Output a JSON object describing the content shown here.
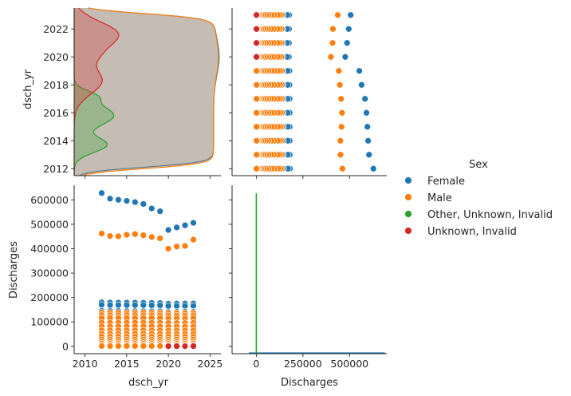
{
  "chart_data": {
    "type": "scatter",
    "title": "",
    "variables": [
      "dsch_yr",
      "Discharges"
    ],
    "legend": {
      "title": "Sex",
      "placement": "right",
      "entries": [
        {
          "label": "Female",
          "color": "#1f77b4"
        },
        {
          "label": "Male",
          "color": "#ff7f0e"
        },
        {
          "label": "Other, Unknown, Invalid",
          "color": "#2ca02c"
        },
        {
          "label": "Unknown, Invalid",
          "color": "#d62728"
        }
      ]
    },
    "axes": {
      "dsch_yr": {
        "label": "dsch_yr",
        "range": [
          2008.7,
          2026.3
        ],
        "ticks": [
          2010,
          2015,
          2020,
          2025
        ],
        "diag_range": [
          2011.5,
          2023.5
        ],
        "diag_ticks": [
          2012,
          2014,
          2016,
          2018,
          2020,
          2022
        ]
      },
      "Discharges": {
        "label": "Discharges",
        "range": [
          -30000,
          660000
        ],
        "ticks": [
          0,
          100000,
          200000,
          300000,
          400000,
          500000,
          600000
        ],
        "x_range": [
          -130000,
          700000
        ],
        "x_ticks": [
          0,
          250000,
          500000
        ]
      }
    },
    "years": [
      2012,
      2013,
      2014,
      2015,
      2016,
      2017,
      2018,
      2019,
      2020,
      2021,
      2022,
      2023
    ],
    "series": [
      {
        "name": "Female",
        "totals": [
          628000,
          605000,
          600000,
          596000,
          591000,
          583000,
          565000,
          553000,
          477000,
          487000,
          496000,
          506000
        ],
        "groups": [
          180000,
          170000,
          145000,
          125000,
          108000,
          90000,
          72000,
          58000,
          45000,
          33000,
          22000,
          14000,
          8000
        ]
      },
      {
        "name": "Male",
        "totals": [
          462000,
          452000,
          451000,
          457000,
          460000,
          455000,
          448000,
          443000,
          400000,
          409000,
          411000,
          437000
        ],
        "groups": [
          138000,
          128000,
          116000,
          97000,
          82000,
          66000,
          52000,
          40000,
          28000,
          18000,
          11000,
          5000,
          1500
        ]
      },
      {
        "name": "Other, Unknown, Invalid",
        "years": [
          2020,
          2021,
          2022,
          2023
        ],
        "values": [
          200,
          300,
          300,
          400
        ]
      },
      {
        "name": "Unknown, Invalid",
        "years": [
          2020,
          2021,
          2022,
          2023
        ],
        "values": [
          800,
          1000,
          900,
          1100
        ]
      }
    ],
    "kde_dsch_yr": [
      {
        "name": "Female",
        "range": [
          2012,
          2023
        ]
      },
      {
        "name": "Male",
        "range": [
          2012,
          2023
        ]
      },
      {
        "name": "Other, Unknown, Invalid",
        "range": [
          2012,
          2019
        ]
      },
      {
        "name": "Unknown, Invalid",
        "range": [
          2017,
          2023
        ]
      }
    ],
    "kde_discharges": [
      {
        "name": "Female"
      },
      {
        "name": "Male"
      },
      {
        "name": "Other, Unknown, Invalid",
        "spike_at": 0
      }
    ]
  }
}
